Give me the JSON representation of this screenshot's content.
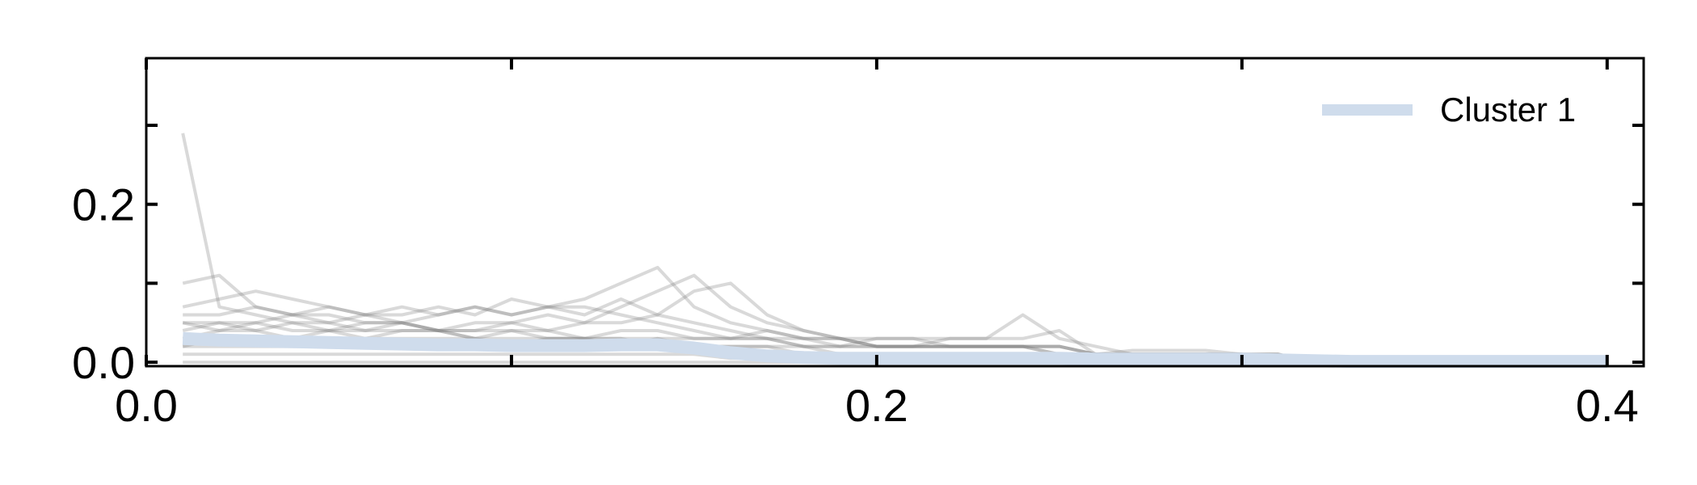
{
  "chart_data": {
    "type": "line",
    "xlim": [
      0.0,
      0.41
    ],
    "ylim": [
      -0.005,
      0.385
    ],
    "xticks": [
      0.0,
      0.1,
      0.2,
      0.3,
      0.4
    ],
    "xtick_labels": [
      "0.0",
      "",
      "0.2",
      "",
      "0.4"
    ],
    "yticks": [
      0.0,
      0.1,
      0.2,
      0.3
    ],
    "ytick_labels": [
      "0.0",
      "",
      "0.2",
      ""
    ],
    "grid": false,
    "legend": {
      "placement": "top-right",
      "entries": [
        {
          "label": "Cluster 1",
          "color": "#cfdcec"
        }
      ]
    },
    "colors": {
      "background_series": "#808080",
      "cluster": "#cfdcec",
      "axis": "#000000"
    },
    "x": [
      0.01,
      0.02,
      0.03,
      0.04,
      0.05,
      0.06,
      0.07,
      0.08,
      0.09,
      0.1,
      0.11,
      0.12,
      0.13,
      0.14,
      0.15,
      0.16,
      0.17,
      0.18,
      0.19,
      0.2,
      0.21,
      0.22,
      0.23,
      0.24,
      0.25,
      0.26,
      0.27,
      0.28,
      0.29,
      0.3,
      0.31,
      0.32,
      0.33,
      0.34,
      0.35,
      0.36,
      0.37,
      0.38,
      0.39,
      0.4
    ],
    "background_series": [
      [
        0.29,
        0.07,
        0.06,
        0.05,
        0.05,
        0.04,
        0.04,
        0.04,
        0.03,
        0.03,
        0.03,
        0.03,
        0.03,
        0.02,
        0.02,
        0.01,
        0.01,
        0.01,
        0.01,
        0.01,
        0.01,
        0.01,
        0.01,
        0.01,
        0.005,
        0.005,
        0.005,
        0.005,
        0.005,
        0.005,
        0.005,
        0.0,
        0.0,
        0.0,
        0.0,
        0.0,
        0.0,
        0.0,
        0.0,
        0.0
      ],
      [
        0.1,
        0.11,
        0.07,
        0.06,
        0.06,
        0.05,
        0.05,
        0.04,
        0.04,
        0.04,
        0.03,
        0.03,
        0.03,
        0.03,
        0.02,
        0.02,
        0.02,
        0.01,
        0.01,
        0.01,
        0.01,
        0.01,
        0.01,
        0.01,
        0.01,
        0.01,
        0.005,
        0.005,
        0.005,
        0.005,
        0.0,
        0.0,
        0.0,
        0.0,
        0.0,
        0.0,
        0.0,
        0.0,
        0.0,
        0.0
      ],
      [
        0.07,
        0.08,
        0.09,
        0.08,
        0.07,
        0.06,
        0.07,
        0.06,
        0.07,
        0.06,
        0.07,
        0.07,
        0.06,
        0.05,
        0.04,
        0.03,
        0.03,
        0.02,
        0.02,
        0.02,
        0.02,
        0.02,
        0.02,
        0.02,
        0.02,
        0.01,
        0.01,
        0.01,
        0.01,
        0.01,
        0.01,
        0.0,
        0.0,
        0.0,
        0.0,
        0.0,
        0.0,
        0.0,
        0.0,
        0.0
      ],
      [
        0.06,
        0.06,
        0.07,
        0.06,
        0.07,
        0.06,
        0.06,
        0.07,
        0.06,
        0.08,
        0.07,
        0.06,
        0.08,
        0.06,
        0.05,
        0.04,
        0.03,
        0.03,
        0.03,
        0.03,
        0.03,
        0.02,
        0.02,
        0.02,
        0.02,
        0.01,
        0.01,
        0.01,
        0.01,
        0.01,
        0.01,
        0.0,
        0.0,
        0.0,
        0.0,
        0.0,
        0.0,
        0.0,
        0.0,
        0.0
      ],
      [
        0.05,
        0.05,
        0.05,
        0.06,
        0.05,
        0.06,
        0.05,
        0.06,
        0.07,
        0.06,
        0.07,
        0.08,
        0.1,
        0.12,
        0.07,
        0.05,
        0.04,
        0.03,
        0.03,
        0.02,
        0.02,
        0.02,
        0.02,
        0.02,
        0.01,
        0.01,
        0.01,
        0.01,
        0.01,
        0.01,
        0.0,
        0.0,
        0.0,
        0.0,
        0.0,
        0.0,
        0.0,
        0.0,
        0.0,
        0.0
      ],
      [
        0.04,
        0.05,
        0.04,
        0.05,
        0.04,
        0.05,
        0.05,
        0.04,
        0.05,
        0.05,
        0.06,
        0.05,
        0.07,
        0.09,
        0.11,
        0.07,
        0.05,
        0.04,
        0.03,
        0.02,
        0.02,
        0.02,
        0.02,
        0.02,
        0.02,
        0.01,
        0.01,
        0.01,
        0.01,
        0.01,
        0.0,
        0.0,
        0.0,
        0.0,
        0.0,
        0.0,
        0.0,
        0.0,
        0.0,
        0.0
      ],
      [
        0.03,
        0.04,
        0.04,
        0.03,
        0.04,
        0.04,
        0.05,
        0.04,
        0.04,
        0.05,
        0.04,
        0.05,
        0.05,
        0.06,
        0.09,
        0.1,
        0.06,
        0.04,
        0.03,
        0.02,
        0.02,
        0.02,
        0.02,
        0.02,
        0.01,
        0.01,
        0.01,
        0.01,
        0.01,
        0.01,
        0.0,
        0.0,
        0.0,
        0.0,
        0.0,
        0.0,
        0.0,
        0.0,
        0.0,
        0.0
      ],
      [
        0.05,
        0.04,
        0.05,
        0.04,
        0.04,
        0.03,
        0.04,
        0.04,
        0.03,
        0.04,
        0.04,
        0.03,
        0.04,
        0.04,
        0.03,
        0.03,
        0.04,
        0.03,
        0.02,
        0.02,
        0.02,
        0.03,
        0.03,
        0.03,
        0.04,
        0.01,
        0.01,
        0.01,
        0.01,
        0.01,
        0.0,
        0.0,
        0.0,
        0.0,
        0.0,
        0.0,
        0.0,
        0.0,
        0.0,
        0.0
      ],
      [
        0.02,
        0.03,
        0.03,
        0.03,
        0.02,
        0.03,
        0.03,
        0.03,
        0.03,
        0.02,
        0.03,
        0.03,
        0.02,
        0.03,
        0.03,
        0.03,
        0.03,
        0.02,
        0.02,
        0.03,
        0.03,
        0.03,
        0.03,
        0.06,
        0.03,
        0.02,
        0.01,
        0.01,
        0.01,
        0.01,
        0.01,
        0.0,
        0.0,
        0.0,
        0.0,
        0.0,
        0.0,
        0.0,
        0.0,
        0.0
      ],
      [
        0.02,
        0.02,
        0.02,
        0.02,
        0.02,
        0.02,
        0.02,
        0.02,
        0.02,
        0.02,
        0.02,
        0.02,
        0.02,
        0.02,
        0.02,
        0.02,
        0.02,
        0.02,
        0.01,
        0.01,
        0.01,
        0.01,
        0.01,
        0.01,
        0.01,
        0.01,
        0.015,
        0.015,
        0.015,
        0.01,
        0.005,
        0.0,
        0.0,
        0.0,
        0.0,
        0.0,
        0.0,
        0.0,
        0.0,
        0.0
      ],
      [
        0.01,
        0.01,
        0.01,
        0.01,
        0.01,
        0.01,
        0.01,
        0.01,
        0.01,
        0.01,
        0.01,
        0.01,
        0.01,
        0.01,
        0.01,
        0.005,
        0.005,
        0.005,
        0.005,
        0.005,
        0.005,
        0.005,
        0.005,
        0.005,
        0.005,
        0.005,
        0.005,
        0.005,
        0.005,
        0.005,
        0.0,
        0.0,
        0.0,
        0.0,
        0.0,
        0.0,
        0.0,
        0.0,
        0.0,
        0.0
      ],
      [
        0.0,
        0.0,
        0.0,
        0.0,
        0.0,
        0.0,
        0.0,
        0.0,
        0.0,
        0.0,
        0.0,
        0.0,
        0.0,
        0.0,
        0.0,
        0.0,
        0.0,
        0.0,
        0.0,
        0.0,
        0.0,
        0.0,
        0.0,
        0.0,
        0.0,
        0.0,
        0.0,
        0.0,
        0.0,
        0.0,
        0.0,
        0.0,
        0.0,
        0.0,
        0.0,
        0.0,
        0.0,
        0.0,
        0.0,
        0.0
      ]
    ],
    "series": [
      {
        "name": "Cluster 1",
        "values": [
          0.03,
          0.028,
          0.027,
          0.026,
          0.025,
          0.024,
          0.023,
          0.022,
          0.022,
          0.021,
          0.021,
          0.021,
          0.022,
          0.022,
          0.018,
          0.012,
          0.008,
          0.006,
          0.005,
          0.005,
          0.005,
          0.005,
          0.005,
          0.005,
          0.005,
          0.004,
          0.004,
          0.004,
          0.004,
          0.004,
          0.003,
          0.002,
          0.001,
          0.001,
          0.001,
          0.001,
          0.001,
          0.001,
          0.001,
          0.001
        ]
      }
    ]
  }
}
